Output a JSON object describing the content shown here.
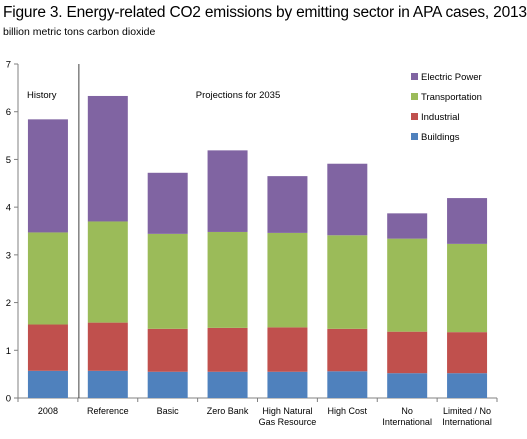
{
  "chart_data": {
    "type": "bar",
    "stacked": true,
    "title": "Figure 3.  Energy-related CO2 emissions by emitting sector in APA cases, 2013",
    "ylabel": "billion metric tons carbon dioxide",
    "xlabel": "",
    "ylim": [
      0,
      7
    ],
    "yticks": [
      0,
      1,
      2,
      3,
      4,
      5,
      6,
      7
    ],
    "grid": false,
    "legend_position": "top-right",
    "categories": [
      [
        "2008"
      ],
      [
        "Reference"
      ],
      [
        "Basic"
      ],
      [
        "Zero Bank"
      ],
      [
        "High Natural",
        "Gas Resource"
      ],
      [
        "High Cost"
      ],
      [
        "No",
        "International"
      ],
      [
        "Limited / No",
        "International"
      ]
    ],
    "series": [
      {
        "name": "Buildings",
        "color": "#4f81bd",
        "values": [
          0.57,
          0.57,
          0.55,
          0.55,
          0.55,
          0.56,
          0.52,
          0.52
        ]
      },
      {
        "name": "Industrial",
        "color": "#c0504d",
        "values": [
          0.97,
          1.01,
          0.9,
          0.92,
          0.93,
          0.89,
          0.87,
          0.86
        ]
      },
      {
        "name": "Transportation",
        "color": "#9bbb59",
        "values": [
          1.93,
          2.12,
          1.99,
          2.01,
          1.98,
          1.96,
          1.95,
          1.85
        ]
      },
      {
        "name": "Electric Power",
        "color": "#8064a2",
        "values": [
          2.37,
          2.63,
          1.28,
          1.71,
          1.19,
          1.5,
          0.53,
          0.96
        ]
      }
    ],
    "annotations": {
      "history": "History",
      "projections": "Projections for 2035"
    }
  }
}
